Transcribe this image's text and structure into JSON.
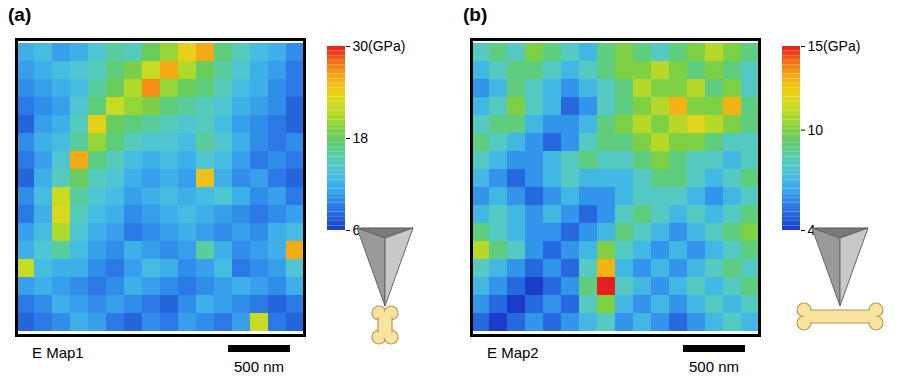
{
  "chart_data": [
    {
      "type": "heatmap",
      "panel_label": "(a)",
      "title": "E Map1",
      "scale_bar": "500 nm",
      "colorbar": {
        "range": [
          6,
          30
        ],
        "ticks": [
          6,
          18,
          {
            "value": 30,
            "label": "30(GPa)"
          }
        ]
      },
      "cells": [
        [
          12,
          13,
          11,
          12,
          14,
          16,
          15,
          18,
          20,
          24,
          26,
          17,
          15,
          13,
          12,
          10
        ],
        [
          11,
          12,
          13,
          14,
          15,
          17,
          19,
          22,
          26,
          21,
          18,
          16,
          14,
          12,
          11,
          9
        ],
        [
          10,
          11,
          12,
          13,
          16,
          18,
          21,
          27,
          20,
          18,
          17,
          15,
          13,
          12,
          10,
          9
        ],
        [
          9,
          10,
          11,
          14,
          17,
          22,
          20,
          19,
          17,
          16,
          15,
          14,
          12,
          11,
          10,
          8
        ],
        [
          8,
          11,
          12,
          15,
          24,
          18,
          17,
          16,
          15,
          14,
          15,
          13,
          11,
          10,
          9,
          8
        ],
        [
          10,
          12,
          13,
          16,
          20,
          17,
          15,
          14,
          14,
          13,
          16,
          14,
          12,
          10,
          9,
          10
        ],
        [
          9,
          11,
          14,
          26,
          17,
          15,
          13,
          12,
          13,
          12,
          14,
          13,
          11,
          9,
          10,
          9
        ],
        [
          8,
          12,
          15,
          18,
          15,
          14,
          12,
          11,
          12,
          11,
          25,
          12,
          10,
          11,
          9,
          8
        ],
        [
          10,
          13,
          22,
          16,
          14,
          13,
          11,
          12,
          13,
          12,
          13,
          14,
          12,
          10,
          11,
          9
        ],
        [
          9,
          12,
          23,
          15,
          13,
          12,
          10,
          11,
          12,
          13,
          12,
          11,
          10,
          9,
          10,
          11
        ],
        [
          11,
          13,
          21,
          14,
          12,
          11,
          9,
          10,
          11,
          12,
          11,
          10,
          11,
          10,
          12,
          13
        ],
        [
          12,
          14,
          16,
          13,
          11,
          10,
          12,
          11,
          10,
          11,
          16,
          12,
          10,
          11,
          12,
          26
        ],
        [
          22,
          13,
          12,
          12,
          10,
          9,
          11,
          13,
          12,
          10,
          11,
          13,
          9,
          10,
          11,
          14
        ],
        [
          11,
          12,
          11,
          10,
          9,
          10,
          12,
          11,
          10,
          9,
          10,
          11,
          12,
          11,
          10,
          12
        ],
        [
          9,
          10,
          12,
          11,
          10,
          11,
          10,
          9,
          8,
          10,
          12,
          11,
          10,
          9,
          8,
          9
        ],
        [
          8,
          9,
          10,
          12,
          11,
          9,
          8,
          10,
          9,
          11,
          10,
          9,
          11,
          22,
          9,
          8
        ]
      ]
    },
    {
      "type": "heatmap",
      "panel_label": "(b)",
      "title": "E Map2",
      "scale_bar": "500 nm",
      "colorbar": {
        "range": [
          4,
          15
        ],
        "ticks": [
          4,
          10,
          {
            "value": 15,
            "label": "15(GPa)"
          }
        ]
      },
      "cells": [
        [
          8,
          9,
          8,
          10,
          9,
          8,
          7,
          9,
          10,
          9,
          8,
          9,
          10,
          11,
          10,
          9
        ],
        [
          7,
          8,
          9,
          9,
          8,
          7,
          8,
          9,
          10,
          10,
          11,
          10,
          9,
          10,
          9,
          8
        ],
        [
          6,
          7,
          9,
          8,
          7,
          6,
          7,
          8,
          9,
          11,
          10,
          10,
          11,
          9,
          10,
          8
        ],
        [
          7,
          8,
          10,
          8,
          7,
          5,
          6,
          8,
          9,
          10,
          11,
          13,
          10,
          10,
          13,
          9
        ],
        [
          8,
          9,
          9,
          7,
          6,
          6,
          7,
          9,
          10,
          11,
          10,
          11,
          12,
          11,
          10,
          9
        ],
        [
          9,
          8,
          7,
          6,
          5,
          6,
          8,
          9,
          9,
          10,
          11,
          10,
          10,
          9,
          8,
          8
        ],
        [
          8,
          7,
          6,
          6,
          7,
          8,
          9,
          8,
          8,
          9,
          10,
          9,
          8,
          8,
          7,
          8
        ],
        [
          7,
          6,
          5,
          6,
          7,
          8,
          7,
          7,
          7,
          8,
          9,
          9,
          8,
          7,
          8,
          9
        ],
        [
          6,
          7,
          6,
          5,
          6,
          7,
          6,
          6,
          7,
          8,
          8,
          8,
          7,
          6,
          7,
          8
        ],
        [
          7,
          8,
          7,
          6,
          7,
          6,
          5,
          6,
          8,
          9,
          8,
          7,
          8,
          7,
          8,
          9
        ],
        [
          9,
          8,
          7,
          6,
          6,
          5,
          6,
          7,
          9,
          8,
          7,
          6,
          7,
          8,
          9,
          10
        ],
        [
          11,
          9,
          8,
          6,
          5,
          6,
          7,
          10,
          8,
          7,
          6,
          7,
          6,
          7,
          8,
          9
        ],
        [
          8,
          7,
          6,
          5,
          6,
          5,
          8,
          13,
          7,
          6,
          7,
          6,
          7,
          8,
          9,
          8
        ],
        [
          7,
          6,
          5,
          4,
          5,
          6,
          9,
          15,
          8,
          7,
          6,
          7,
          8,
          7,
          8,
          9
        ],
        [
          6,
          5,
          4,
          5,
          6,
          5,
          8,
          10,
          7,
          6,
          7,
          6,
          7,
          8,
          7,
          8
        ],
        [
          5,
          4,
          5,
          6,
          5,
          6,
          7,
          8,
          6,
          7,
          6,
          5,
          6,
          7,
          8,
          7
        ]
      ]
    }
  ]
}
